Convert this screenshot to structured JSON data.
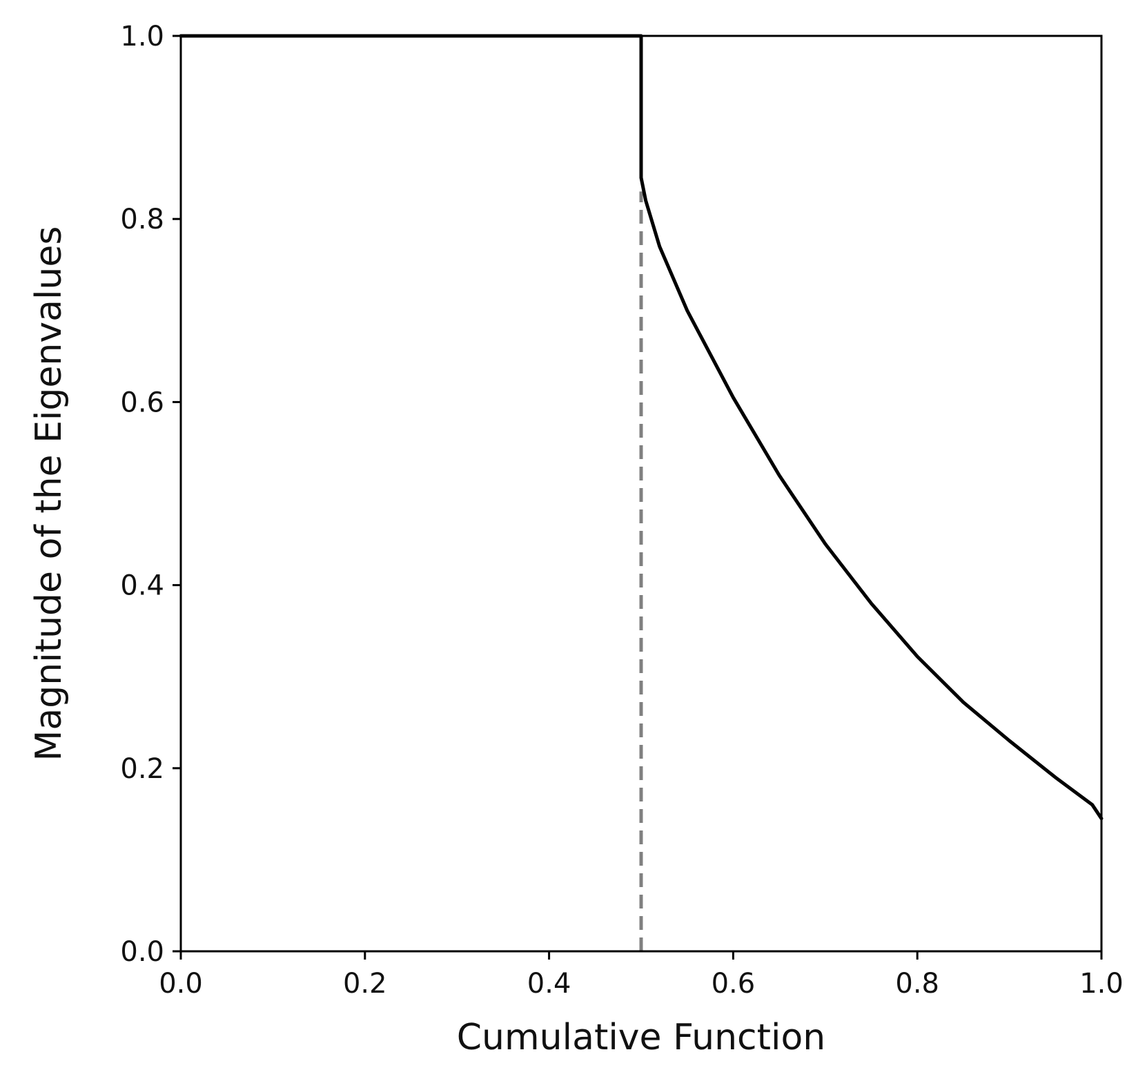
{
  "chart_data": {
    "type": "line",
    "title": "",
    "xlabel": "Cumulative Function",
    "ylabel": "Magnitude of the Eigenvalues",
    "xlim": [
      0.0,
      1.0
    ],
    "ylim": [
      0.0,
      1.0
    ],
    "x_ticks": [
      "0.0",
      "0.2",
      "0.4",
      "0.6",
      "0.8",
      "1.0"
    ],
    "y_ticks": [
      "0.0",
      "0.2",
      "0.4",
      "0.6",
      "0.8",
      "1.0"
    ],
    "grid": false,
    "legend": "none",
    "series": [
      {
        "style": "solid",
        "color": "#000000",
        "x": [
          0.0,
          0.5,
          0.5,
          0.505,
          0.52,
          0.55,
          0.6,
          0.65,
          0.7,
          0.75,
          0.8,
          0.85,
          0.9,
          0.95,
          0.99,
          1.0
        ],
        "y": [
          1.0,
          1.0,
          0.845,
          0.82,
          0.77,
          0.7,
          0.605,
          0.52,
          0.445,
          0.38,
          0.322,
          0.272,
          0.23,
          0.19,
          0.16,
          0.145
        ]
      }
    ],
    "reference_lines": [
      {
        "style": "dashed",
        "color": "#808080",
        "x": [
          0.5,
          0.5
        ],
        "y": [
          0.0,
          0.83
        ]
      }
    ]
  }
}
